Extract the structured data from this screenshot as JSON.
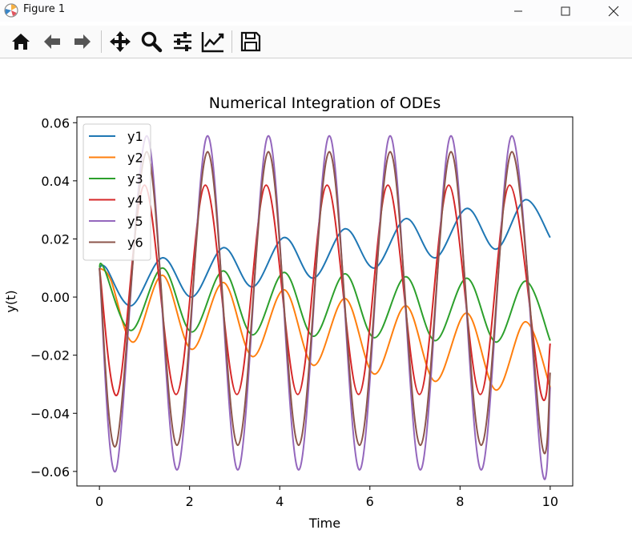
{
  "window": {
    "title": "Figure 1",
    "minimize_icon": "minimize-icon",
    "maximize_icon": "maximize-icon",
    "close_icon": "close-icon"
  },
  "toolbar": {
    "buttons": [
      {
        "name": "home",
        "icon": "home-icon"
      },
      {
        "name": "back",
        "icon": "arrow-left-icon"
      },
      {
        "name": "forward",
        "icon": "arrow-right-icon"
      },
      {
        "name": "pan",
        "icon": "move-icon"
      },
      {
        "name": "zoom",
        "icon": "zoom-icon"
      },
      {
        "name": "subplots",
        "icon": "sliders-icon"
      },
      {
        "name": "edit-axes",
        "icon": "trend-chart-icon"
      },
      {
        "name": "save",
        "icon": "floppy-disk-icon"
      }
    ]
  },
  "chart_data": {
    "type": "line",
    "title": "Numerical Integration of ODEs",
    "xlabel": "Time",
    "ylabel": "y(t)",
    "xlim": [
      -0.5,
      10.5
    ],
    "ylim": [
      -0.065,
      0.062
    ],
    "xticks": [
      0,
      2,
      4,
      6,
      8,
      10
    ],
    "xtick_labels": [
      "0",
      "2",
      "4",
      "6",
      "8",
      "10"
    ],
    "yticks": [
      -0.06,
      -0.04,
      -0.02,
      0.0,
      0.02,
      0.04,
      0.06
    ],
    "ytick_labels": [
      "−0.06",
      "−0.04",
      "−0.02",
      "0.00",
      "0.02",
      "0.04",
      "0.06"
    ],
    "grid": false,
    "legend_position": "top-left",
    "series": [
      {
        "name": "y1",
        "color": "#1f77b4",
        "x": [
          0,
          0.15,
          0.7,
          1.4,
          2.05,
          2.75,
          3.4,
          4.1,
          4.75,
          5.45,
          6.1,
          6.8,
          7.45,
          8.15,
          8.8,
          9.45,
          10
        ],
        "y": [
          0.01,
          0.01,
          -0.003,
          0.0135,
          0.0,
          0.017,
          0.0035,
          0.0205,
          0.0065,
          0.0235,
          0.01,
          0.027,
          0.0135,
          0.0305,
          0.0165,
          0.0335,
          0.0205
        ]
      },
      {
        "name": "y2",
        "color": "#ff7f0e",
        "x": [
          0,
          0.25,
          0.75,
          1.4,
          2.05,
          2.75,
          3.4,
          4.1,
          4.75,
          5.45,
          6.1,
          6.8,
          7.45,
          8.15,
          8.8,
          9.45,
          10
        ],
        "y": [
          0.01,
          0.006,
          -0.0155,
          0.0075,
          -0.018,
          0.005,
          -0.0205,
          0.0025,
          -0.0235,
          -0.0005,
          -0.0265,
          -0.003,
          -0.029,
          -0.0055,
          -0.032,
          -0.0085,
          -0.031
        ]
      },
      {
        "name": "y3",
        "color": "#2ca02c",
        "x": [
          0,
          0.1,
          0.7,
          1.4,
          2.05,
          2.75,
          3.4,
          4.1,
          4.75,
          5.45,
          6.1,
          6.8,
          7.45,
          8.15,
          8.8,
          9.45,
          10
        ],
        "y": [
          0.01,
          0.01,
          -0.0115,
          0.01,
          -0.012,
          0.009,
          -0.013,
          0.0085,
          -0.0135,
          0.008,
          -0.014,
          0.007,
          -0.015,
          0.0065,
          -0.0155,
          0.0055,
          -0.015
        ]
      },
      {
        "name": "y4",
        "color": "#d62728",
        "x": [
          0,
          0.4,
          1.0,
          1.7,
          2.35,
          3.05,
          3.7,
          4.4,
          5.05,
          5.75,
          6.4,
          7.1,
          7.75,
          8.45,
          9.1,
          9.8,
          10
        ],
        "y": [
          0.01,
          -0.0335,
          0.0385,
          -0.0335,
          0.0385,
          -0.0335,
          0.0385,
          -0.0335,
          0.0385,
          -0.0335,
          0.0385,
          -0.0335,
          0.0385,
          -0.0335,
          0.0385,
          -0.0335,
          -0.016
        ]
      },
      {
        "name": "y5",
        "color": "#9467bd",
        "x": [
          0,
          0.37,
          1.05,
          1.72,
          2.4,
          3.07,
          3.75,
          4.42,
          5.1,
          5.77,
          6.45,
          7.12,
          7.8,
          8.47,
          9.15,
          9.82,
          10
        ],
        "y": [
          0.01,
          -0.0595,
          0.0555,
          -0.0595,
          0.0555,
          -0.0595,
          0.0555,
          -0.0595,
          0.0555,
          -0.0595,
          0.0555,
          -0.0595,
          0.0555,
          -0.0595,
          0.0555,
          -0.0595,
          -0.031
        ]
      },
      {
        "name": "y6",
        "color": "#8c564b",
        "x": [
          0,
          0.37,
          1.05,
          1.72,
          2.4,
          3.07,
          3.75,
          4.42,
          5.1,
          5.77,
          6.45,
          7.12,
          7.8,
          8.47,
          9.15,
          9.82,
          10
        ],
        "y": [
          0.01,
          -0.051,
          0.05,
          -0.051,
          0.05,
          -0.051,
          0.05,
          -0.051,
          0.05,
          -0.051,
          0.05,
          -0.051,
          0.05,
          -0.051,
          0.05,
          -0.051,
          -0.026
        ]
      }
    ]
  }
}
